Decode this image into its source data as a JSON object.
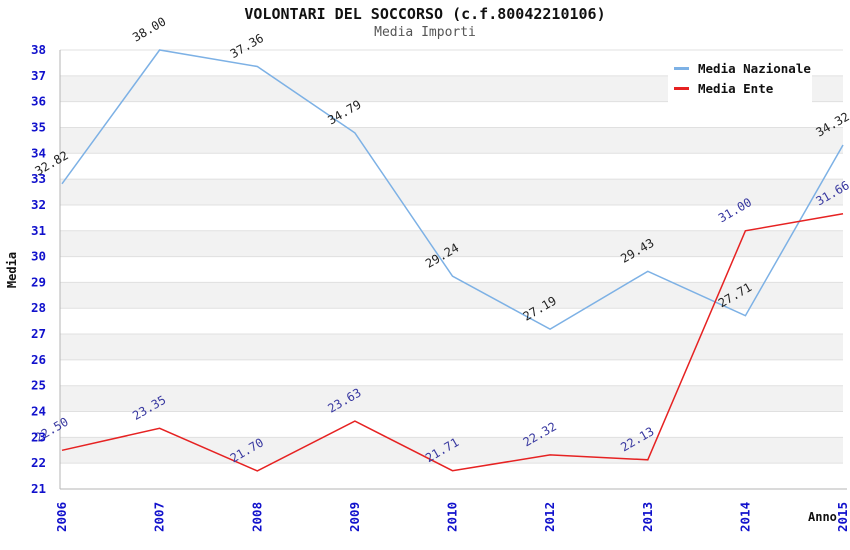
{
  "header": {
    "title": "VOLONTARI DEL SOCCORSO (c.f.80042210106)",
    "subtitle": "Media Importi"
  },
  "axes": {
    "y_title": "Media",
    "x_title": "Anno"
  },
  "legend": {
    "position": "top-right",
    "items": [
      {
        "label": "Media Nazionale",
        "color": "#7db1e5"
      },
      {
        "label": "Media Ente",
        "color": "#e62222"
      }
    ]
  },
  "colors": {
    "tick_label": "#1111cc",
    "band_gray": "#f2f2f2",
    "band_white": "#ffffff",
    "gridline": "#e0e0e0",
    "axis_line": "#b5b5b5",
    "title": "#111111",
    "subtitle": "#555555"
  },
  "chart_data": {
    "type": "line",
    "title": "VOLONTARI DEL SOCCORSO (c.f.80042210106)",
    "subtitle": "Media Importi",
    "xlabel": "Anno",
    "ylabel": "Media",
    "categories": [
      "2006",
      "2007",
      "2008",
      "2009",
      "2010",
      "2012",
      "2013",
      "2014",
      "2015"
    ],
    "series": [
      {
        "name": "Media Nazionale",
        "color": "#7db1e5",
        "label_color": "#222222",
        "values": [
          32.82,
          38.0,
          37.36,
          34.79,
          29.24,
          27.19,
          29.43,
          27.71,
          34.32
        ]
      },
      {
        "name": "Media Ente",
        "color": "#e62222",
        "label_color": "#3838a0",
        "values": [
          22.5,
          23.35,
          21.7,
          23.63,
          21.71,
          22.32,
          22.13,
          31.0,
          31.66
        ]
      }
    ],
    "ylim": [
      21,
      38
    ],
    "y_tick_step": 1,
    "y_ticks": [
      21,
      22,
      23,
      24,
      25,
      26,
      27,
      28,
      29,
      30,
      31,
      32,
      33,
      34,
      35,
      36,
      37,
      38
    ],
    "grid": "horizontal-alternating-bands",
    "value_labels": "shown-rotated",
    "legend_position": "top-right"
  }
}
